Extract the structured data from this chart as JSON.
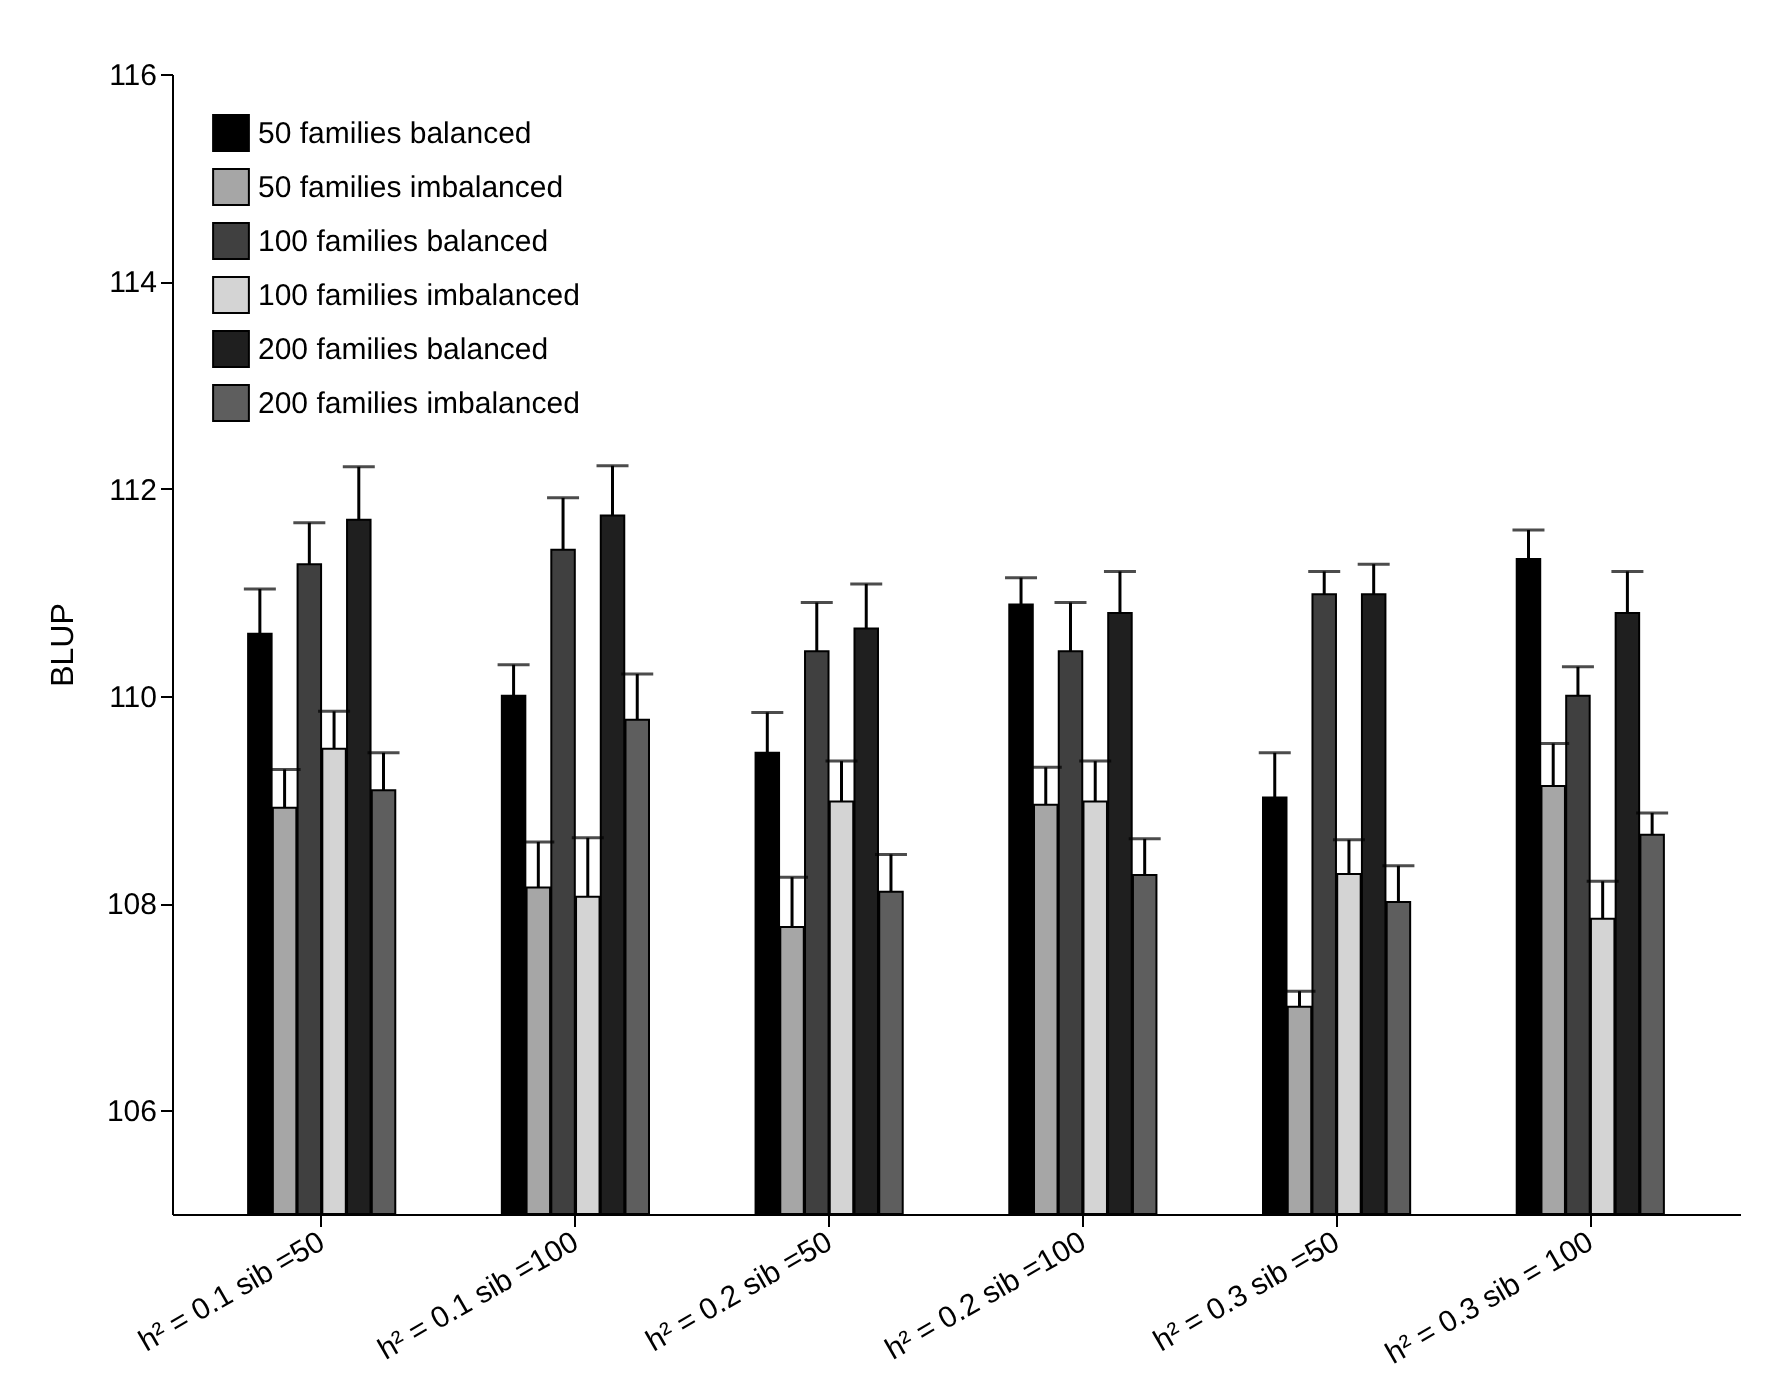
{
  "chart_data": {
    "type": "bar",
    "ylabel": "BLUP",
    "categories": [
      "h² = 0.1 sib =50",
      "h² = 0.1 sib =100",
      "h² = 0.2 sib =50",
      "h² = 0.2 sib =100",
      "h² = 0.3 sib =50",
      "h² = 0.3 sib = 100"
    ],
    "series": [
      {
        "name": "50 families balanced",
        "color": "#000000",
        "values": [
          110.6,
          110.0,
          109.45,
          110.88,
          109.02,
          111.32
        ],
        "errors": [
          0.43,
          0.3,
          0.39,
          0.26,
          0.43,
          0.28
        ]
      },
      {
        "name": "50 families imbalanced",
        "color": "#a6a6a6",
        "values": [
          108.92,
          108.15,
          107.77,
          108.95,
          107.0,
          109.13
        ],
        "errors": [
          0.37,
          0.44,
          0.48,
          0.36,
          0.15,
          0.41
        ]
      },
      {
        "name": "100 families balanced",
        "color": "#404040",
        "values": [
          111.27,
          111.41,
          110.43,
          110.43,
          110.98,
          110.0
        ],
        "errors": [
          0.4,
          0.5,
          0.47,
          0.47,
          0.22,
          0.28
        ]
      },
      {
        "name": "100 families imbalanced",
        "color": "#d4d4d4",
        "values": [
          109.49,
          108.06,
          108.98,
          108.98,
          108.28,
          107.85
        ],
        "errors": [
          0.36,
          0.57,
          0.39,
          0.39,
          0.33,
          0.36
        ]
      },
      {
        "name": "200 families balanced",
        "color": "#1f1f1f",
        "values": [
          111.7,
          111.74,
          110.65,
          110.8,
          110.98,
          110.8
        ],
        "errors": [
          0.51,
          0.48,
          0.43,
          0.4,
          0.29,
          0.4
        ]
      },
      {
        "name": "200 families imbalanced",
        "color": "#5e5e5e",
        "values": [
          109.09,
          109.77,
          108.11,
          108.27,
          108.01,
          108.66
        ],
        "errors": [
          0.36,
          0.44,
          0.36,
          0.35,
          0.35,
          0.21
        ]
      }
    ],
    "ylim": [
      105,
      116
    ],
    "yticks": [
      106,
      108,
      110,
      112,
      114,
      116
    ],
    "grid": false,
    "legend": "top left"
  }
}
